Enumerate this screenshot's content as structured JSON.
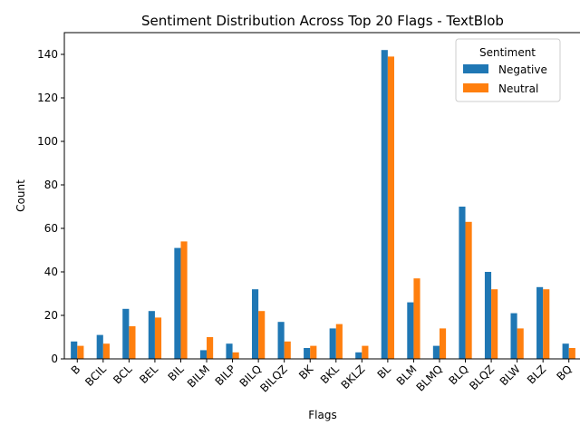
{
  "chart_data": {
    "type": "bar",
    "title": "Sentiment Distribution Across Top 20 Flags - TextBlob",
    "xlabel": "Flags",
    "ylabel": "Count",
    "ylim": [
      0,
      150
    ],
    "yticks": [
      0,
      20,
      40,
      60,
      80,
      100,
      120,
      140
    ],
    "categories": [
      "B",
      "BCIL",
      "BCL",
      "BEL",
      "BIL",
      "BILM",
      "BILP",
      "BILQ",
      "BILQZ",
      "BK",
      "BKL",
      "BKLZ",
      "BL",
      "BLM",
      "BLMQ",
      "BLQ",
      "BLQZ",
      "BLW",
      "BLZ",
      "BQ"
    ],
    "series": [
      {
        "name": "Negative",
        "color": "#1f77b4",
        "values": [
          8,
          11,
          23,
          22,
          51,
          4,
          7,
          32,
          17,
          5,
          14,
          3,
          142,
          26,
          6,
          70,
          40,
          21,
          33,
          7
        ]
      },
      {
        "name": "Neutral",
        "color": "#ff7f0e",
        "values": [
          6,
          7,
          15,
          19,
          54,
          10,
          3,
          22,
          8,
          6,
          16,
          6,
          139,
          37,
          14,
          63,
          32,
          14,
          32,
          5
        ]
      }
    ],
    "legend": {
      "title": "Sentiment",
      "placement": "top-right"
    },
    "grid": false
  }
}
